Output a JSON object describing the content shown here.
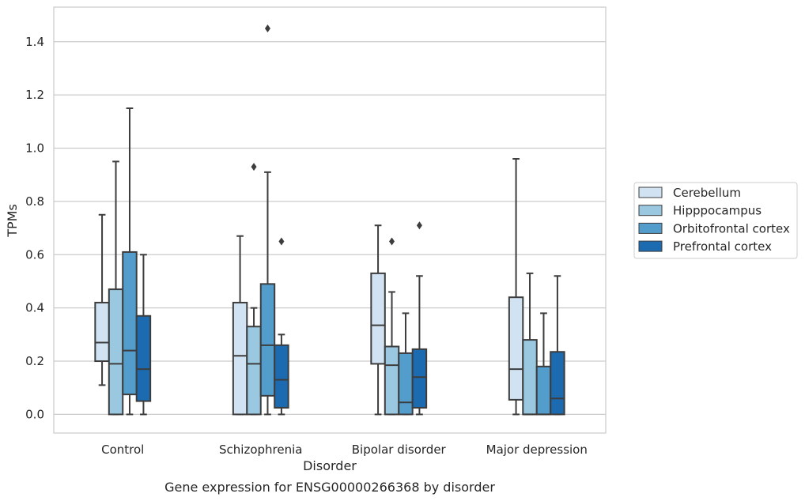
{
  "chart_data": {
    "type": "boxplot",
    "xlabel": "Disorder",
    "ylabel": "TPMs",
    "caption": "Gene expression for ENSG00000266368 by disorder",
    "ylim": [
      -0.07,
      1.53
    ],
    "yticks": [
      0.0,
      0.2,
      0.4,
      0.6,
      0.8,
      1.0,
      1.2,
      1.4
    ],
    "ytick_labels": [
      "0.0",
      "0.2",
      "0.4",
      "0.6",
      "0.8",
      "1.0",
      "1.2",
      "1.4"
    ],
    "grid": true,
    "legend_position": "outside-right",
    "categories": [
      "Control",
      "Schizophrenia",
      "Bipolar disorder",
      "Major depression"
    ],
    "series": [
      {
        "name": "Cerebellum",
        "color": "#d1e3f3",
        "boxes": [
          {
            "whislo": 0.11,
            "q1": 0.2,
            "med": 0.27,
            "q3": 0.42,
            "whishi": 0.75,
            "fliers": []
          },
          {
            "whislo": 0.0,
            "q1": 0.0,
            "med": 0.22,
            "q3": 0.42,
            "whishi": 0.67,
            "fliers": []
          },
          {
            "whislo": 0.0,
            "q1": 0.19,
            "med": 0.335,
            "q3": 0.53,
            "whishi": 0.71,
            "fliers": []
          },
          {
            "whislo": 0.0,
            "q1": 0.055,
            "med": 0.17,
            "q3": 0.44,
            "whishi": 0.96,
            "fliers": []
          }
        ]
      },
      {
        "name": "Hipppocampus",
        "color": "#9ac8e0",
        "boxes": [
          {
            "whislo": 0.0,
            "q1": 0.0,
            "med": 0.19,
            "q3": 0.47,
            "whishi": 0.95,
            "fliers": []
          },
          {
            "whislo": 0.0,
            "q1": 0.0,
            "med": 0.19,
            "q3": 0.33,
            "whishi": 0.4,
            "fliers": [
              0.93
            ]
          },
          {
            "whislo": 0.0,
            "q1": 0.0,
            "med": 0.185,
            "q3": 0.255,
            "whishi": 0.46,
            "fliers": [
              0.65
            ]
          },
          {
            "whislo": 0.0,
            "q1": 0.0,
            "med": 0.0,
            "q3": 0.28,
            "whishi": 0.53,
            "fliers": []
          }
        ]
      },
      {
        "name": "Orbitofrontal cortex",
        "color": "#529dcc",
        "boxes": [
          {
            "whislo": 0.0,
            "q1": 0.075,
            "med": 0.24,
            "q3": 0.61,
            "whishi": 1.15,
            "fliers": []
          },
          {
            "whislo": 0.0,
            "q1": 0.07,
            "med": 0.26,
            "q3": 0.49,
            "whishi": 0.91,
            "fliers": [
              1.45
            ]
          },
          {
            "whislo": 0.0,
            "q1": 0.0,
            "med": 0.045,
            "q3": 0.23,
            "whishi": 0.38,
            "fliers": []
          },
          {
            "whislo": 0.0,
            "q1": 0.0,
            "med": 0.0,
            "q3": 0.18,
            "whishi": 0.38,
            "fliers": []
          }
        ]
      },
      {
        "name": "Prefrontal cortex",
        "color": "#1c6aaf",
        "boxes": [
          {
            "whislo": 0.0,
            "q1": 0.05,
            "med": 0.17,
            "q3": 0.37,
            "whishi": 0.6,
            "fliers": []
          },
          {
            "whislo": 0.0,
            "q1": 0.025,
            "med": 0.13,
            "q3": 0.26,
            "whishi": 0.3,
            "fliers": [
              0.65
            ]
          },
          {
            "whislo": 0.0,
            "q1": 0.025,
            "med": 0.14,
            "q3": 0.245,
            "whishi": 0.52,
            "fliers": [
              0.71
            ]
          },
          {
            "whislo": 0.0,
            "q1": 0.0,
            "med": 0.06,
            "q3": 0.235,
            "whishi": 0.52,
            "fliers": []
          }
        ]
      }
    ],
    "colors": {
      "grid": "#cccccc",
      "spine": "#cccccc",
      "line": "#3d3d3d",
      "legend_border": "#cccccc"
    }
  }
}
